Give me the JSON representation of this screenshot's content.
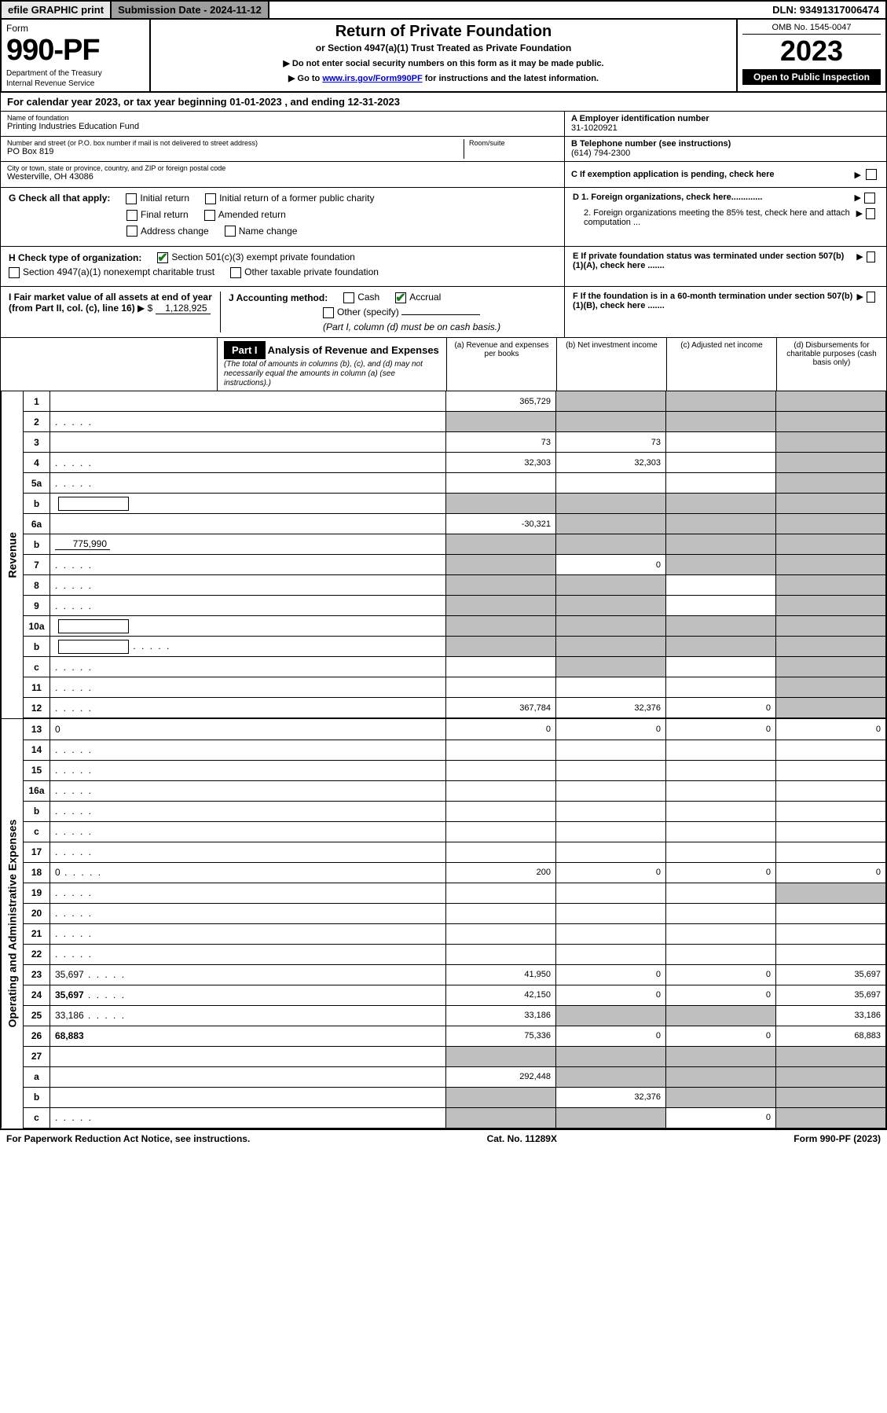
{
  "top_bar": {
    "efile": "efile GRAPHIC print",
    "submission": "Submission Date - 2024-11-12",
    "dln": "DLN: 93491317006474"
  },
  "header": {
    "form_label": "Form",
    "form_number": "990-PF",
    "dept": "Department of the Treasury",
    "irs": "Internal Revenue Service",
    "title": "Return of Private Foundation",
    "subtitle": "or Section 4947(a)(1) Trust Treated as Private Foundation",
    "note1": "▶ Do not enter social security numbers on this form as it may be made public.",
    "note2_pre": "▶ Go to ",
    "note2_link": "www.irs.gov/Form990PF",
    "note2_post": " for instructions and the latest information.",
    "omb": "OMB No. 1545-0047",
    "year": "2023",
    "open": "Open to Public Inspection"
  },
  "cal_year": "For calendar year 2023, or tax year beginning 01-01-2023             , and ending 12-31-2023",
  "info": {
    "name_label": "Name of foundation",
    "name": "Printing Industries Education Fund",
    "addr_label": "Number and street (or P.O. box number if mail is not delivered to street address)",
    "addr": "PO Box 819",
    "room_label": "Room/suite",
    "city_label": "City or town, state or province, country, and ZIP or foreign postal code",
    "city": "Westerville, OH  43086",
    "ein_label": "A Employer identification number",
    "ein": "31-1020921",
    "phone_label": "B Telephone number (see instructions)",
    "phone": "(614) 794-2300",
    "c_label": "C If exemption application is pending, check here",
    "d1": "D 1. Foreign organizations, check here.............",
    "d2": "2. Foreign organizations meeting the 85% test, check here and attach computation ...",
    "e": "E  If private foundation status was terminated under section 507(b)(1)(A), check here .......",
    "f": "F  If the foundation is in a 60-month termination under section 507(b)(1)(B), check here ......."
  },
  "g": {
    "label": "G Check all that apply:",
    "opts": [
      "Initial return",
      "Final return",
      "Address change",
      "Initial return of a former public charity",
      "Amended return",
      "Name change"
    ]
  },
  "h": {
    "label": "H Check type of organization:",
    "opt1": "Section 501(c)(3) exempt private foundation",
    "opt2": "Section 4947(a)(1) nonexempt charitable trust",
    "opt3": "Other taxable private foundation"
  },
  "i": {
    "label": "I Fair market value of all assets at end of year (from Part II, col. (c), line 16)",
    "value": "1,128,925"
  },
  "j": {
    "label": "J Accounting method:",
    "cash": "Cash",
    "accrual": "Accrual",
    "other": "Other (specify)",
    "note": "(Part I, column (d) must be on cash basis.)"
  },
  "part1": {
    "label": "Part I",
    "title": "Analysis of Revenue and Expenses",
    "subtitle": "(The total of amounts in columns (b), (c), and (d) may not necessarily equal the amounts in column (a) (see instructions).)",
    "cols": {
      "a": "(a)  Revenue and expenses per books",
      "b": "(b)  Net investment income",
      "c": "(c)  Adjusted net income",
      "d": "(d)  Disbursements for charitable purposes (cash basis only)"
    }
  },
  "side_labels": {
    "revenue": "Revenue",
    "expenses": "Operating and Administrative Expenses"
  },
  "rows": [
    {
      "n": "1",
      "d": "",
      "a": "365,729",
      "b": "",
      "c": "",
      "shade_bcd": true
    },
    {
      "n": "2",
      "d": "",
      "dots": true,
      "a": "",
      "b": "",
      "c": "",
      "shade_all": true
    },
    {
      "n": "3",
      "d": "",
      "a": "73",
      "b": "73",
      "c": "",
      "shade_d": true
    },
    {
      "n": "4",
      "d": "",
      "dots": true,
      "a": "32,303",
      "b": "32,303",
      "c": "",
      "shade_d": true
    },
    {
      "n": "5a",
      "d": "",
      "dots": true,
      "a": "",
      "b": "",
      "c": "",
      "shade_d": true
    },
    {
      "n": "b",
      "d": "",
      "box": true,
      "a": "",
      "b": "",
      "c": "",
      "shade_all": true
    },
    {
      "n": "6a",
      "d": "",
      "a": "-30,321",
      "b": "",
      "c": "",
      "shade_bcd": true
    },
    {
      "n": "b",
      "d": "",
      "uval": "775,990",
      "a": "",
      "b": "",
      "c": "",
      "shade_all": true
    },
    {
      "n": "7",
      "d": "",
      "dots": true,
      "a": "",
      "b": "0",
      "c": "",
      "shade_a": true,
      "shade_cd": true
    },
    {
      "n": "8",
      "d": "",
      "dots": true,
      "a": "",
      "b": "",
      "c": "",
      "shade_ab": true,
      "shade_d": true
    },
    {
      "n": "9",
      "d": "",
      "dots": true,
      "a": "",
      "b": "",
      "c": "",
      "shade_ab": true,
      "shade_d": true
    },
    {
      "n": "10a",
      "d": "",
      "box": true,
      "a": "",
      "b": "",
      "c": "",
      "shade_all": true
    },
    {
      "n": "b",
      "d": "",
      "dots": true,
      "box": true,
      "a": "",
      "b": "",
      "c": "",
      "shade_all": true
    },
    {
      "n": "c",
      "d": "",
      "dots": true,
      "a": "",
      "b": "",
      "c": "",
      "shade_b": true,
      "shade_d": true
    },
    {
      "n": "11",
      "d": "",
      "dots": true,
      "a": "",
      "b": "",
      "c": "",
      "shade_d": true
    },
    {
      "n": "12",
      "d": "",
      "dots": true,
      "bold": true,
      "a": "367,784",
      "b": "32,376",
      "c": "0",
      "shade_d": true
    }
  ],
  "exp_rows": [
    {
      "n": "13",
      "d": "0",
      "a": "0",
      "b": "0",
      "c": "0"
    },
    {
      "n": "14",
      "d": "",
      "dots": true,
      "a": "",
      "b": "",
      "c": ""
    },
    {
      "n": "15",
      "d": "",
      "dots": true,
      "a": "",
      "b": "",
      "c": ""
    },
    {
      "n": "16a",
      "d": "",
      "dots": true,
      "a": "",
      "b": "",
      "c": ""
    },
    {
      "n": "b",
      "d": "",
      "dots": true,
      "a": "",
      "b": "",
      "c": ""
    },
    {
      "n": "c",
      "d": "",
      "dots": true,
      "a": "",
      "b": "",
      "c": ""
    },
    {
      "n": "17",
      "d": "",
      "dots": true,
      "a": "",
      "b": "",
      "c": ""
    },
    {
      "n": "18",
      "d": "0",
      "dots": true,
      "a": "200",
      "b": "0",
      "c": "0"
    },
    {
      "n": "19",
      "d": "",
      "dots": true,
      "a": "",
      "b": "",
      "c": "",
      "shade_d": true
    },
    {
      "n": "20",
      "d": "",
      "dots": true,
      "a": "",
      "b": "",
      "c": ""
    },
    {
      "n": "21",
      "d": "",
      "dots": true,
      "a": "",
      "b": "",
      "c": ""
    },
    {
      "n": "22",
      "d": "",
      "dots": true,
      "a": "",
      "b": "",
      "c": ""
    },
    {
      "n": "23",
      "d": "35,697",
      "dots": true,
      "a": "41,950",
      "b": "0",
      "c": "0"
    },
    {
      "n": "24",
      "d": "35,697",
      "dots": true,
      "bold": true,
      "a": "42,150",
      "b": "0",
      "c": "0"
    },
    {
      "n": "25",
      "d": "33,186",
      "dots": true,
      "a": "33,186",
      "b": "",
      "c": "",
      "shade_bc": true
    },
    {
      "n": "26",
      "d": "68,883",
      "bold": true,
      "a": "75,336",
      "b": "0",
      "c": "0"
    },
    {
      "n": "27",
      "d": "",
      "a": "",
      "b": "",
      "c": "",
      "shade_all": true
    },
    {
      "n": "a",
      "d": "",
      "bold": true,
      "a": "292,448",
      "b": "",
      "c": "",
      "shade_bcd": true
    },
    {
      "n": "b",
      "d": "",
      "bold": true,
      "a": "",
      "b": "32,376",
      "c": "",
      "shade_a": true,
      "shade_cd": true
    },
    {
      "n": "c",
      "d": "",
      "dots": true,
      "bold": true,
      "a": "",
      "b": "",
      "c": "0",
      "shade_ab": true,
      "shade_d": true
    }
  ],
  "footer": {
    "left": "For Paperwork Reduction Act Notice, see instructions.",
    "mid": "Cat. No. 11289X",
    "right": "Form 990-PF (2023)"
  }
}
